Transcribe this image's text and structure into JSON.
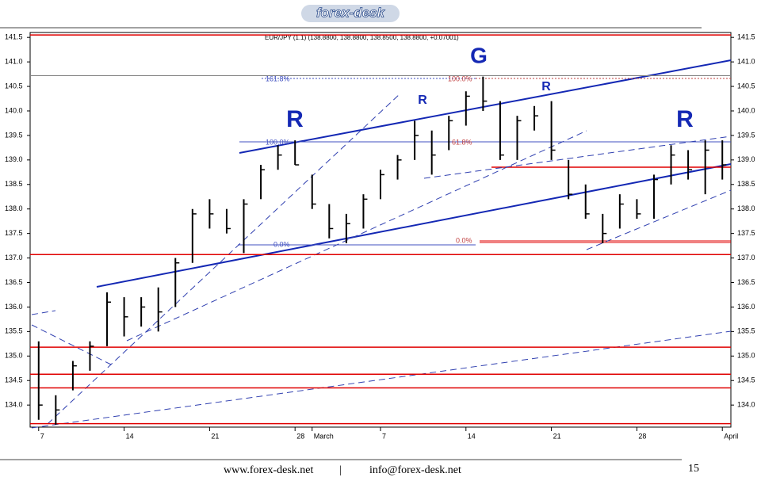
{
  "header": {
    "logo": "forex-desk"
  },
  "chart_data": {
    "type": "hlc",
    "title": "EUR/JPY (1.1) (138.8800, 138.8800, 138.8500, 138.8800, +0.07001)",
    "categories": [
      "7",
      null,
      null,
      null,
      null,
      "14",
      null,
      null,
      null,
      null,
      "21",
      null,
      null,
      null,
      null,
      "28",
      "March",
      null,
      null,
      null,
      "7",
      null,
      null,
      null,
      null,
      "14",
      null,
      null,
      null,
      null,
      "21",
      null,
      null,
      null,
      null,
      "28",
      null,
      null,
      null,
      null,
      "April"
    ],
    "series": [
      {
        "name": "High",
        "values": [
          135.3,
          134.2,
          134.9,
          135.3,
          136.3,
          136.2,
          136.2,
          136.4,
          137.0,
          138.0,
          138.2,
          138.0,
          138.2,
          138.9,
          139.3,
          139.4,
          138.7,
          138.1,
          137.9,
          138.3,
          138.8,
          139.1,
          139.8,
          139.6,
          139.9,
          140.4,
          140.7,
          140.2,
          139.9,
          140.1,
          140.2,
          139.0,
          138.5,
          137.9,
          138.3,
          138.2,
          138.7,
          139.3,
          139.2,
          139.4,
          139.4
        ]
      },
      {
        "name": "Low",
        "values": [
          133.7,
          133.6,
          134.3,
          134.7,
          135.2,
          135.4,
          135.6,
          135.5,
          136.0,
          136.9,
          137.6,
          137.5,
          137.1,
          138.2,
          138.8,
          138.9,
          138.0,
          137.4,
          137.3,
          137.6,
          138.2,
          138.6,
          139.0,
          138.7,
          139.2,
          139.7,
          140.0,
          139.0,
          139.0,
          139.6,
          139.0,
          138.2,
          137.8,
          137.3,
          137.6,
          137.8,
          137.8,
          138.5,
          138.6,
          138.3,
          138.6
        ]
      },
      {
        "name": "Close",
        "values": [
          134.0,
          133.9,
          134.8,
          135.2,
          136.1,
          135.8,
          136.0,
          135.9,
          136.9,
          137.9,
          137.9,
          137.6,
          138.1,
          138.8,
          139.1,
          138.9,
          138.1,
          137.6,
          137.7,
          138.2,
          138.7,
          139.0,
          139.5,
          139.1,
          139.8,
          140.3,
          140.2,
          139.1,
          139.8,
          139.9,
          139.2,
          138.3,
          137.9,
          137.5,
          138.1,
          137.9,
          138.6,
          139.1,
          138.8,
          139.2,
          138.9
        ]
      }
    ],
    "color": "#000000",
    "ylim": [
      133.55,
      141.6
    ],
    "yticks": [
      {
        "value": 134,
        "label": "134.0"
      },
      134.5,
      {
        "value": 135,
        "label": "135.0"
      },
      135.5,
      {
        "value": 136,
        "label": "136.0"
      },
      136.5,
      {
        "value": 137,
        "label": "137.0"
      },
      137.5,
      {
        "value": 138,
        "label": "138.0"
      },
      138.5,
      {
        "value": 139,
        "label": "139.0"
      },
      139.5,
      {
        "value": 140,
        "label": "140.0"
      },
      140.5,
      {
        "value": 141,
        "label": "141.0"
      },
      141.5
    ],
    "levels": [
      {
        "value": 141.55,
        "color": "#e00000"
      },
      {
        "value": 140.72,
        "color": "#808080"
      },
      {
        "value": 137.07,
        "color": "#e00000"
      },
      {
        "value": 135.18,
        "color": "#e00000"
      },
      {
        "value": 134.63,
        "color": "#e00000"
      },
      {
        "value": 134.35,
        "color": "#e00000"
      },
      {
        "value": 133.62,
        "color": "#e00000"
      }
    ],
    "annotations": [
      "G",
      "R",
      "R",
      "R",
      "R",
      "161.8%",
      "100.0%",
      "0.0%",
      "100.0%",
      "61.8%",
      "0.0%"
    ]
  },
  "footer": {
    "website": "www.forex-desk.net",
    "separator": "|",
    "email": "info@forex-desk.net",
    "page": "15"
  }
}
